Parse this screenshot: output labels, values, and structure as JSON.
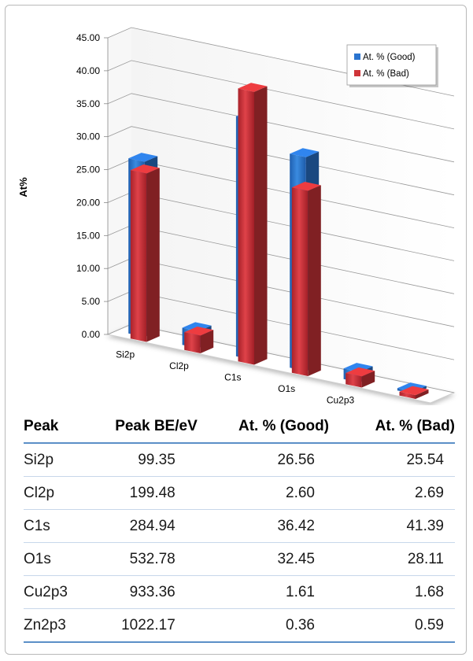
{
  "chart_data": {
    "type": "bar",
    "variant": "3d-clustered-column",
    "ylabel": "At%",
    "xlabel": "",
    "ylim": [
      0,
      45
    ],
    "y_ticks": [
      "0.00",
      "5.00",
      "10.00",
      "15.00",
      "20.00",
      "25.00",
      "30.00",
      "35.00",
      "40.00",
      "45.00"
    ],
    "categories": [
      "Si2p",
      "Cl2p",
      "C1s",
      "O1s",
      "Cu2p3",
      "Zn2p3"
    ],
    "series": [
      {
        "name": "At. % (Good)",
        "color": "#2a74cf",
        "values": [
          26.56,
          2.6,
          36.42,
          32.45,
          1.61,
          0.36
        ]
      },
      {
        "name": "At. % (Bad)",
        "color": "#cf3438",
        "values": [
          25.54,
          2.69,
          41.39,
          28.11,
          1.68,
          0.59
        ]
      }
    ],
    "legend_position": "top-right",
    "grid": true
  },
  "table": {
    "headers": [
      "Peak",
      "Peak BE/eV",
      "At. % (Good)",
      "At. % (Bad)"
    ],
    "rows": [
      [
        "Si2p",
        "99.35",
        "26.56",
        "25.54"
      ],
      [
        "Cl2p",
        "199.48",
        "2.60",
        "2.69"
      ],
      [
        "C1s",
        "284.94",
        "36.42",
        "41.39"
      ],
      [
        "O1s",
        "532.78",
        "32.45",
        "28.11"
      ],
      [
        "Cu2p3",
        "933.36",
        "1.61",
        "1.68"
      ],
      [
        "Zn2p3",
        "1022.17",
        "0.36",
        "0.59"
      ]
    ]
  }
}
